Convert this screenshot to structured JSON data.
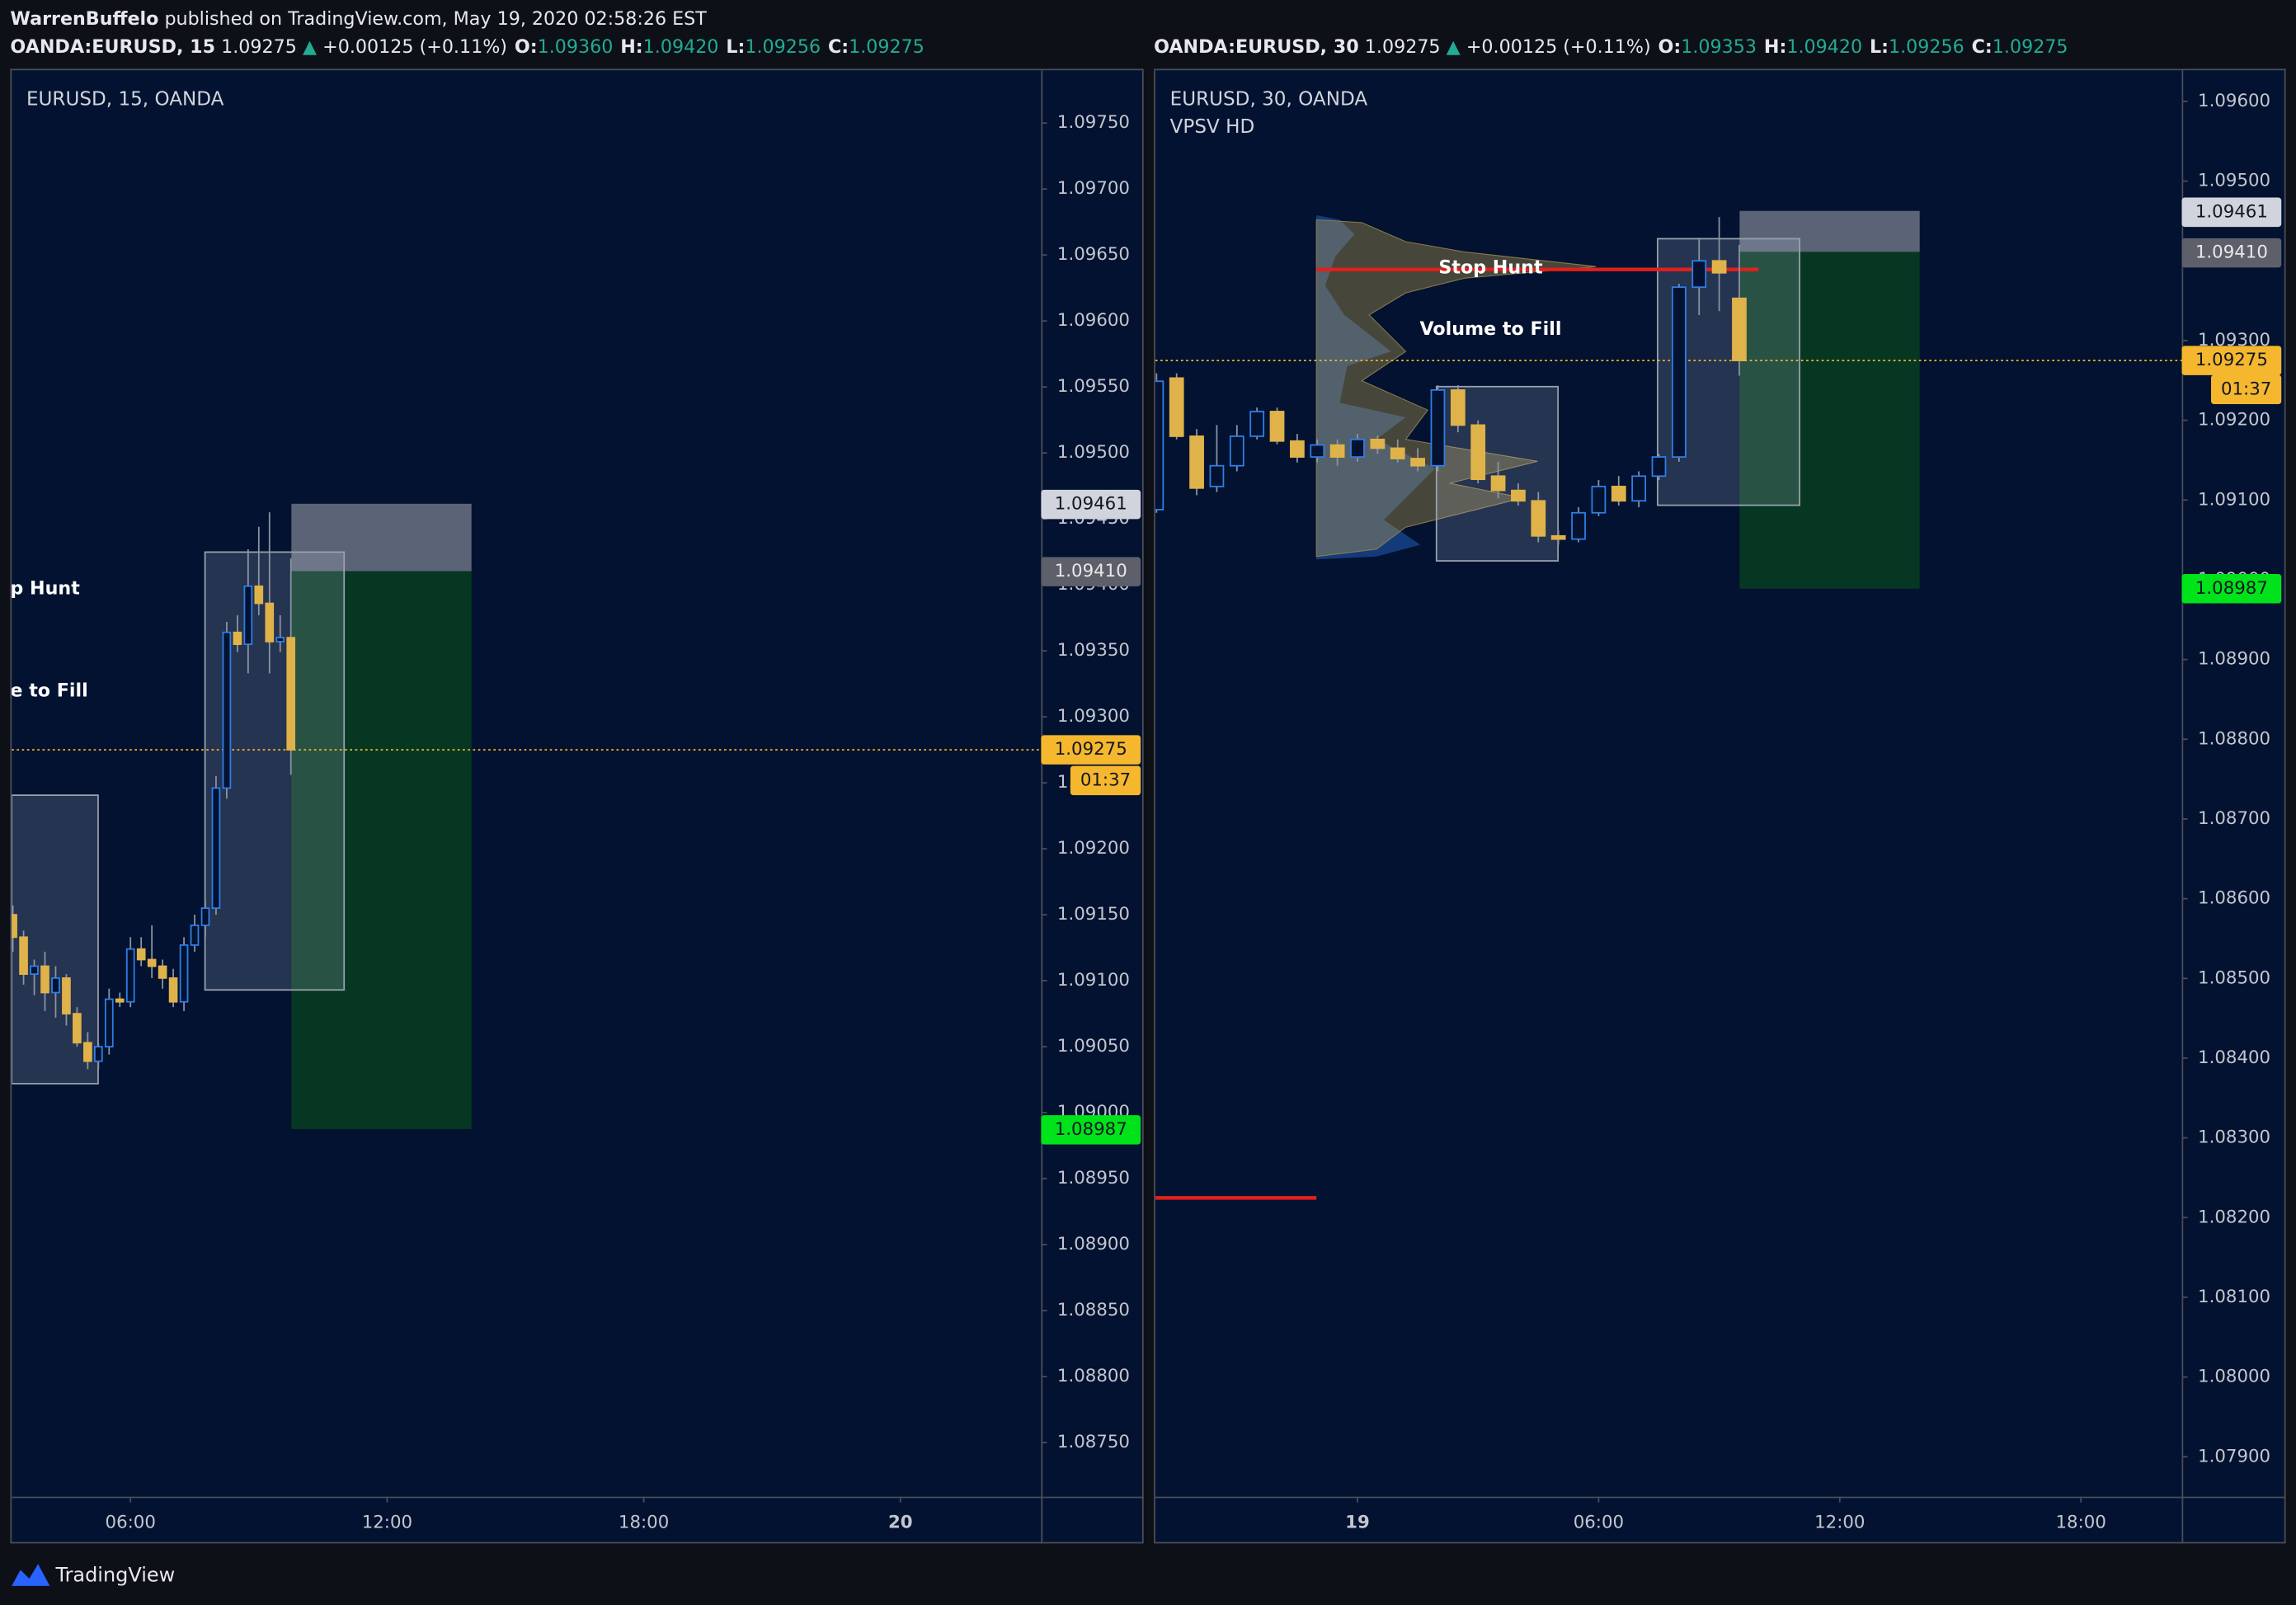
{
  "header": {
    "author": "WarrenBuffelo",
    "published": " published on TradingView.com, May 19, 2020 02:58:26 EST"
  },
  "footer": {
    "brand": "TradingView"
  },
  "chart_data": [
    {
      "type": "candlestick",
      "title": "EURUSD, 15, OANDA",
      "legend": {
        "symbol": "OANDA:EURUSD, 15",
        "last": "1.09275",
        "arrow": "▲",
        "change": "+0.00125 (+0.11%)",
        "o_label": "O:",
        "o": "1.09360",
        "h_label": "H:",
        "h": "1.09420",
        "l_label": "L:",
        "l": "1.09256",
        "c_label": "C:",
        "c": "1.09275"
      },
      "annotations": [
        "p Hunt",
        "e to Fill"
      ],
      "x": [
        3.25,
        3.5,
        3.75,
        4,
        4.25,
        4.5,
        4.75,
        5,
        5.25,
        5.5,
        5.75,
        6,
        6.25,
        6.5,
        6.75,
        7,
        7.25,
        7.5,
        7.75,
        8,
        8.25,
        8.5,
        8.75,
        9,
        9.25,
        9.5,
        9.75
      ],
      "open": [
        1.0915,
        1.09133,
        1.09105,
        1.09111,
        1.09091,
        1.09102,
        1.09075,
        1.09053,
        1.09039,
        1.0905,
        1.09086,
        1.09084,
        1.09124,
        1.09116,
        1.09111,
        1.09102,
        1.09084,
        1.09127,
        1.09142,
        1.09155,
        1.09246,
        1.09364,
        1.09355,
        1.09399,
        1.09386,
        1.09357,
        1.0936
      ],
      "high": [
        1.09157,
        1.09138,
        1.09116,
        1.09122,
        1.09111,
        1.09105,
        1.0908,
        1.09061,
        1.09053,
        1.09094,
        1.09091,
        1.09133,
        1.09133,
        1.09142,
        1.09116,
        1.09109,
        1.09133,
        1.0915,
        1.09161,
        1.09255,
        1.09372,
        1.09377,
        1.09427,
        1.09444,
        1.09455,
        1.09377,
        1.0942
      ],
      "low": [
        1.09122,
        1.09097,
        1.09089,
        1.09077,
        1.09072,
        1.09066,
        1.0905,
        1.09033,
        1.09033,
        1.09044,
        1.0908,
        1.0908,
        1.09111,
        1.09102,
        1.09094,
        1.0908,
        1.09077,
        1.09122,
        1.09133,
        1.0915,
        1.09238,
        1.09349,
        1.09333,
        1.09377,
        1.09333,
        1.09349,
        1.09256
      ],
      "close": [
        1.09133,
        1.09105,
        1.09111,
        1.09091,
        1.09102,
        1.09075,
        1.09053,
        1.09039,
        1.0905,
        1.09086,
        1.09084,
        1.09124,
        1.09116,
        1.09111,
        1.09102,
        1.09084,
        1.09127,
        1.09142,
        1.09155,
        1.09246,
        1.09364,
        1.09355,
        1.09399,
        1.09386,
        1.09357,
        1.0936,
        1.09275
      ],
      "up_color": "#2f7fe8",
      "down_color": "#e0b24a",
      "wick_color": "#8c93a3",
      "xlim": [
        3.223,
        27.29
      ],
      "xticks": [
        {
          "value": 6,
          "label": "06:00"
        },
        {
          "value": 12,
          "label": "12:00"
        },
        {
          "value": 18,
          "label": "18:00"
        },
        {
          "value": 24,
          "label": "20"
        }
      ],
      "ylim": [
        1.08709,
        1.0979
      ],
      "yticks": [
        {
          "value": 1.0975,
          "label": "1.09750"
        },
        {
          "value": 1.097,
          "label": "1.09700"
        },
        {
          "value": 1.0965,
          "label": "1.09650"
        },
        {
          "value": 1.096,
          "label": "1.09600"
        },
        {
          "value": 1.0955,
          "label": "1.09550"
        },
        {
          "value": 1.095,
          "label": "1.09500"
        },
        {
          "value": 1.0945,
          "label": "1.09450"
        },
        {
          "value": 1.094,
          "label": "1.09400"
        },
        {
          "value": 1.0935,
          "label": "1.09350"
        },
        {
          "value": 1.093,
          "label": "1.09300"
        },
        {
          "value": 1.0925,
          "label": "1.09250"
        },
        {
          "value": 1.092,
          "label": "1.09200"
        },
        {
          "value": 1.0915,
          "label": "1.09150"
        },
        {
          "value": 1.091,
          "label": "1.09100"
        },
        {
          "value": 1.0905,
          "label": "1.09050"
        },
        {
          "value": 1.09,
          "label": "1.09000"
        },
        {
          "value": 1.0895,
          "label": "1.08950"
        },
        {
          "value": 1.089,
          "label": "1.08900"
        },
        {
          "value": 1.0885,
          "label": "1.08850"
        },
        {
          "value": 1.088,
          "label": "1.08800"
        },
        {
          "value": 1.0875,
          "label": "1.08750"
        }
      ],
      "price_labels": [
        {
          "value": 1.09461,
          "label": "1.09461",
          "color": "#d1d4dc",
          "text_color": "#131722"
        },
        {
          "value": 1.0941,
          "label": "1.09410",
          "color": "#5d606b",
          "text_color": "#e8e8e8"
        },
        {
          "value": 1.09275,
          "label": "1.09275",
          "color": "#f5b72e",
          "text_color": "#131722"
        },
        {
          "value": 1.08987,
          "label": "1.08987",
          "color": "#00e31a",
          "text_color": "#131722"
        }
      ],
      "countdown": "01:37"
    },
    {
      "type": "candlestick",
      "title": "EURUSD, 30, OANDA",
      "subtitle": "VPSV HD",
      "legend": {
        "symbol": "OANDA:EURUSD, 30",
        "last": "1.09275",
        "arrow": "▲",
        "change": "+0.00125 (+0.11%)",
        "o_label": "O:",
        "o": "1.09353",
        "h_label": "H:",
        "h": "1.09420",
        "l_label": "L:",
        "l": "1.09256",
        "c_label": "C:",
        "c": "1.09275"
      },
      "annotations": [
        "Stop Hunt",
        "Volume to Fill"
      ],
      "x": [
        -5,
        -4.5,
        -4,
        -3.5,
        -3,
        -2.5,
        -2,
        -1.5,
        -1,
        -0.5,
        0,
        0.5,
        1,
        1.5,
        2,
        2.5,
        3,
        3.5,
        4,
        4.5,
        5,
        5.5,
        6,
        6.5,
        7,
        7.5,
        8,
        8.5,
        9,
        9.5
      ],
      "open": [
        1.09088,
        1.09253,
        1.0918,
        1.09117,
        1.09143,
        1.0918,
        1.09211,
        1.09174,
        1.09154,
        1.09169,
        1.09154,
        1.09176,
        1.09165,
        1.09152,
        1.09143,
        1.09238,
        1.09194,
        1.0913,
        1.09112,
        1.09099,
        1.09055,
        1.09051,
        1.09084,
        1.09117,
        1.09099,
        1.0913,
        1.09154,
        1.09367,
        1.094,
        1.09353
      ],
      "high": [
        1.09259,
        1.09259,
        1.09189,
        1.09194,
        1.09194,
        1.09216,
        1.09216,
        1.09183,
        1.09176,
        1.09176,
        1.09183,
        1.09181,
        1.09176,
        1.09165,
        1.09244,
        1.09244,
        1.092,
        1.09148,
        1.09121,
        1.0911,
        1.09062,
        1.09091,
        1.09125,
        1.0913,
        1.09136,
        1.09158,
        1.09371,
        1.09429,
        1.09455,
        1.0942
      ],
      "low": [
        1.09084,
        1.09176,
        1.09106,
        1.0911,
        1.09136,
        1.09176,
        1.0917,
        1.09147,
        1.09147,
        1.09143,
        1.09148,
        1.09158,
        1.09147,
        1.09136,
        1.09136,
        1.09185,
        1.09121,
        1.09102,
        1.09093,
        1.09047,
        1.09044,
        1.09047,
        1.0908,
        1.09093,
        1.09091,
        1.09125,
        1.09148,
        1.09332,
        1.09337,
        1.09256
      ],
      "close": [
        1.09249,
        1.0918,
        1.09115,
        1.09143,
        1.0918,
        1.09211,
        1.09174,
        1.09154,
        1.09169,
        1.09154,
        1.09176,
        1.09165,
        1.09152,
        1.09143,
        1.09238,
        1.09194,
        1.09126,
        1.09112,
        1.09099,
        1.09055,
        1.09051,
        1.09084,
        1.09117,
        1.09099,
        1.0913,
        1.09154,
        1.09367,
        1.094,
        1.09385,
        1.09275
      ],
      "up_color": "#2f7fe8",
      "down_color": "#e0b24a",
      "wick_color": "#8c93a3",
      "xlim": [
        -5.03,
        20.51
      ],
      "xticks": [
        {
          "value": 0,
          "label": "19"
        },
        {
          "value": 6,
          "label": "06:00"
        },
        {
          "value": 12,
          "label": "12:00"
        },
        {
          "value": 18,
          "label": "18:00"
        }
      ],
      "ylim": [
        1.0785,
        1.09639
      ],
      "yticks": [
        {
          "value": 1.096,
          "label": "1.09600"
        },
        {
          "value": 1.095,
          "label": "1.09500"
        },
        {
          "value": 1.094,
          "label": "1.09400"
        },
        {
          "value": 1.093,
          "label": "1.09300"
        },
        {
          "value": 1.092,
          "label": "1.09200"
        },
        {
          "value": 1.091,
          "label": "1.09100"
        },
        {
          "value": 1.09,
          "label": "1.09000"
        },
        {
          "value": 1.089,
          "label": "1.08900"
        },
        {
          "value": 1.088,
          "label": "1.08800"
        },
        {
          "value": 1.087,
          "label": "1.08700"
        },
        {
          "value": 1.086,
          "label": "1.08600"
        },
        {
          "value": 1.085,
          "label": "1.08500"
        },
        {
          "value": 1.084,
          "label": "1.08400"
        },
        {
          "value": 1.083,
          "label": "1.08300"
        },
        {
          "value": 1.082,
          "label": "1.08200"
        },
        {
          "value": 1.081,
          "label": "1.08100"
        },
        {
          "value": 1.08,
          "label": "1.08000"
        },
        {
          "value": 1.079,
          "label": "1.07900"
        }
      ],
      "price_labels": [
        {
          "value": 1.09461,
          "label": "1.09461",
          "color": "#d1d4dc",
          "text_color": "#131722"
        },
        {
          "value": 1.0941,
          "label": "1.09410",
          "color": "#5d606b",
          "text_color": "#e8e8e8"
        },
        {
          "value": 1.09275,
          "label": "1.09275",
          "color": "#f5b72e",
          "text_color": "#131722"
        },
        {
          "value": 1.08987,
          "label": "1.08987",
          "color": "#00e31a",
          "text_color": "#131722"
        }
      ],
      "countdown": "01:37"
    }
  ]
}
